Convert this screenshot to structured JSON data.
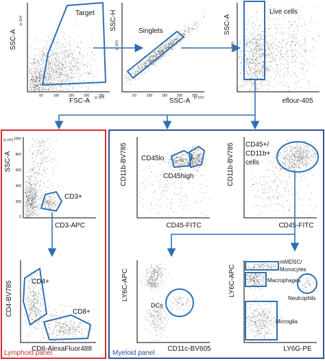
{
  "colors": {
    "gate": "#2e6fb0",
    "lymphoid_border": "#d62b2b",
    "myeloid_border": "#2f4f96",
    "dots": "#222222"
  },
  "plots": {
    "p1": {
      "ylabel": "SSC-A",
      "xlabel": "FSC-A",
      "yexp": "(x 10³)",
      "xexp": "(x 10³)",
      "xticks": [
        "50",
        "100",
        "150",
        "200",
        "250"
      ],
      "yticks": [],
      "gate_label": "Target"
    },
    "p2": {
      "ylabel": "SSC-H",
      "xlabel": "SSC-A",
      "yexp": "(x 10³)",
      "xexp": "(x 10³)",
      "xticks": [
        "50",
        "100",
        "150",
        "200",
        "250"
      ],
      "yticks": [],
      "gate_label": "Singlets"
    },
    "p3": {
      "ylabel": "SSC-A",
      "xlabel": "eflour-405",
      "yexp": "(x 10³)",
      "xticks": [],
      "yticks": [],
      "gate_label": "Live cells"
    },
    "p4": {
      "ylabel": "SSC-A",
      "xlabel": "CD3-APC",
      "yexp": "(x 10³)",
      "yticks": [
        "1000",
        "800",
        "600",
        "400",
        "200",
        "0"
      ],
      "gate_label": "CD3+"
    },
    "p5": {
      "ylabel": "CD4-BV785",
      "xlabel": "CD8-AlexaFluor488",
      "gate_label_a": "CD4+",
      "gate_label_b": "CD8+"
    },
    "p6": {
      "ylabel": "CD11b-BV785",
      "xlabel": "CD45-FITC",
      "gate_label_a": "CD45lo",
      "gate_label_b": "CD45high"
    },
    "p7": {
      "ylabel": "CD11b-BV785",
      "xlabel": "CD45-FITC",
      "gate_label_line1": "CD45+/",
      "gate_label_line2": "CD11b+",
      "gate_label_line3": "cells"
    },
    "p8": {
      "ylabel": "LY6C-APC",
      "xlabel": "CD11c-BV605",
      "gate_label": "DCs"
    },
    "p9": {
      "ylabel": "LY6C-APC",
      "xlabel": "LY6G-PE",
      "gate_label_a1": "mMDSC/",
      "gate_label_a2": "Monocytes",
      "gate_label_b": "Macrophages",
      "gate_label_c": "Neutrophils",
      "gate_label_d": "Microglia"
    }
  },
  "panels": {
    "lymphoid": "Lymphoid panel",
    "myeloid": "Myeloid panel"
  }
}
